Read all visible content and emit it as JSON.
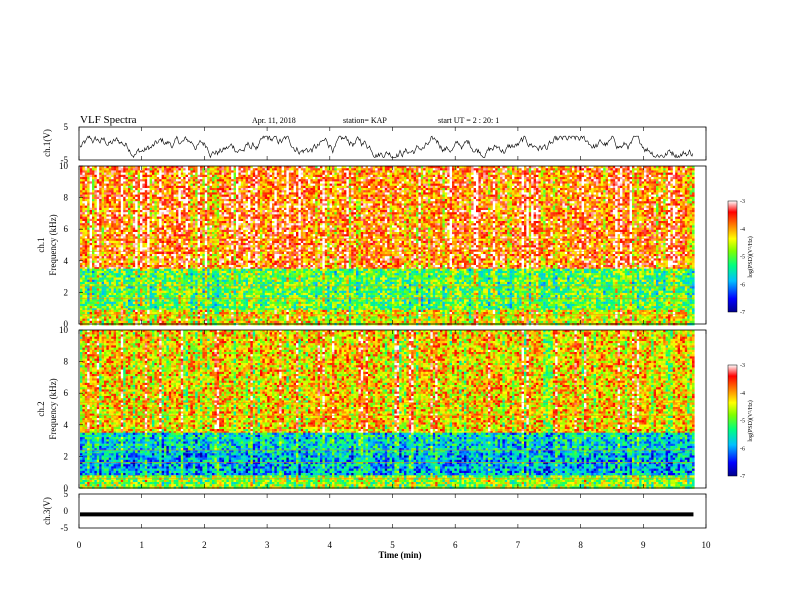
{
  "header": {
    "title": "VLF Spectra",
    "date": "Apr. 11, 2018",
    "station": "station= KAP",
    "start": "start  UT  =   2 : 20: 1"
  },
  "chart_data": [
    {
      "type": "line",
      "panel": "ch1_waveform",
      "ylabel": "ch.1(V)",
      "ylim": [
        -5,
        5
      ],
      "yticks": [
        "5",
        "-5"
      ],
      "description_series": "noisy waveform oscillating roughly between -4 and +2 V",
      "line_color": "#000000"
    },
    {
      "type": "heatmap",
      "panel": "ch1_spectrogram",
      "ylabel": "ch.1\nFrequency (kHz)",
      "ylabel_line1": "ch.1",
      "ylabel_line2": "Frequency (kHz)",
      "ylim": [
        0,
        10
      ],
      "yticks": [
        "0",
        "2",
        "4",
        "6",
        "8",
        "10"
      ],
      "bands": [
        {
          "from_khz": 3.5,
          "to_khz": 10,
          "level": -3.7
        },
        {
          "from_khz": 0.9,
          "to_khz": 3.5,
          "level": -5.0
        },
        {
          "from_khz": 0.0,
          "to_khz": 0.9,
          "level": -4.3
        }
      ],
      "colorbar": {
        "label": "log(PSD)(V²/Hz)",
        "ticks": [
          "-3",
          "-4",
          "-5",
          "-6",
          "-7"
        ],
        "range": [
          -7,
          -3
        ]
      }
    },
    {
      "type": "heatmap",
      "panel": "ch2_spectrogram",
      "ylabel_line1": "ch.2",
      "ylabel_line2": "Frequency (kHz)",
      "ylim": [
        0,
        10
      ],
      "yticks": [
        "0",
        "2",
        "4",
        "6",
        "8",
        "10"
      ],
      "bands": [
        {
          "from_khz": 3.5,
          "to_khz": 10,
          "level": -4.2
        },
        {
          "from_khz": 2.2,
          "to_khz": 3.5,
          "level": -5.6
        },
        {
          "from_khz": 0.8,
          "to_khz": 2.2,
          "level": -5.8
        },
        {
          "from_khz": 0.0,
          "to_khz": 0.8,
          "level": -4.8
        }
      ],
      "colorbar": {
        "label": "log(PSD)(V²/Hz)",
        "ticks": [
          "-3",
          "-4",
          "-5",
          "-6",
          "-7"
        ],
        "range": [
          -7,
          -3
        ]
      }
    },
    {
      "type": "line",
      "panel": "ch3_waveform",
      "ylabel": "ch.3(V)",
      "ylim": [
        -5,
        5
      ],
      "yticks": [
        "5",
        "0",
        "-5"
      ],
      "values_constant": -1,
      "line_color": "#000000"
    }
  ],
  "xaxis": {
    "label": "Time (min)",
    "xlim": [
      0,
      10
    ],
    "ticks": [
      "0",
      "1",
      "2",
      "3",
      "4",
      "5",
      "6",
      "7",
      "8",
      "9",
      "10"
    ],
    "data_end_min": 9.8
  },
  "colors": {
    "colormap": [
      "#00008b",
      "#0000ff",
      "#00bfff",
      "#00ff7f",
      "#7fff00",
      "#ffff00",
      "#ff8000",
      "#ff0000",
      "#ffffff"
    ]
  }
}
